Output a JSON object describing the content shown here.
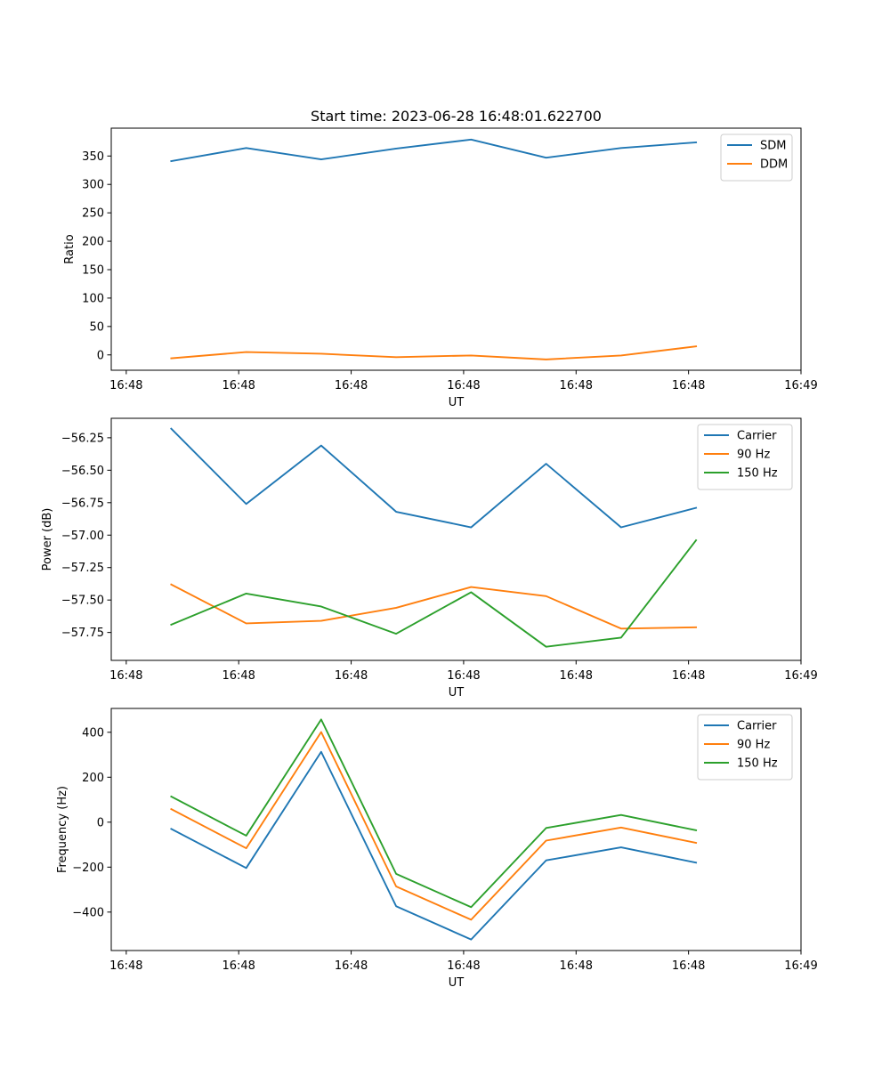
{
  "figure": {
    "title": "Start time: 2023-06-28 16:48:01.622700"
  },
  "chart_data": [
    {
      "type": "line",
      "title": "Start time: 2023-06-28 16:48:01.622700",
      "xlabel": "UT",
      "ylabel": "Ratio",
      "x": [
        1,
        2,
        3,
        4,
        5,
        6,
        7,
        8
      ],
      "xlim": [
        0.2,
        9.4
      ],
      "xtick_positions": [
        0.4,
        1.9,
        3.4,
        4.9,
        6.4,
        7.9,
        9.4
      ],
      "xtick_labels": [
        "16:48",
        "16:48",
        "16:48",
        "16:48",
        "16:48",
        "16:48",
        "16:49"
      ],
      "ylim": [
        -27,
        399
      ],
      "yticks": [
        0,
        50,
        100,
        150,
        200,
        250,
        300,
        350
      ],
      "grid": false,
      "legend_position": "top-right",
      "series": [
        {
          "name": "SDM",
          "color": "#1f77b4",
          "values": [
            341,
            364,
            344,
            363,
            379,
            347,
            364,
            374
          ]
        },
        {
          "name": "DDM",
          "color": "#ff7f0e",
          "values": [
            -6,
            5,
            2,
            -4,
            -1,
            -8,
            -1,
            15
          ]
        }
      ]
    },
    {
      "type": "line",
      "xlabel": "UT",
      "ylabel": "Power (dB)",
      "x": [
        1,
        2,
        3,
        4,
        5,
        6,
        7,
        8
      ],
      "xlim": [
        0.2,
        9.4
      ],
      "xtick_positions": [
        0.4,
        1.9,
        3.4,
        4.9,
        6.4,
        7.9,
        9.4
      ],
      "xtick_labels": [
        "16:48",
        "16:48",
        "16:48",
        "16:48",
        "16:48",
        "16:48",
        "16:49"
      ],
      "ylim": [
        -57.965,
        -56.1
      ],
      "yticks": [
        -57.75,
        -57.5,
        -57.25,
        -57.0,
        -56.75,
        -56.5,
        -56.25
      ],
      "ytick_labels": [
        "−57.75",
        "−57.50",
        "−57.25",
        "−57.00",
        "−56.75",
        "−56.50",
        "−56.25"
      ],
      "grid": false,
      "legend_position": "top-right",
      "series": [
        {
          "name": "Carrier",
          "color": "#1f77b4",
          "values": [
            -56.18,
            -56.76,
            -56.31,
            -56.82,
            -56.94,
            -56.45,
            -56.94,
            -56.79
          ]
        },
        {
          "name": "90 Hz",
          "color": "#ff7f0e",
          "values": [
            -57.38,
            -57.68,
            -57.66,
            -57.56,
            -57.4,
            -57.47,
            -57.72,
            -57.71
          ]
        },
        {
          "name": "150 Hz",
          "color": "#2ca02c",
          "values": [
            -57.69,
            -57.45,
            -57.55,
            -57.76,
            -57.44,
            -57.86,
            -57.79,
            -57.04
          ]
        }
      ]
    },
    {
      "type": "line",
      "xlabel": "UT",
      "ylabel": "Frequency (Hz)",
      "x": [
        1,
        2,
        3,
        4,
        5,
        6,
        7,
        8
      ],
      "xlim": [
        0.2,
        9.4
      ],
      "xtick_positions": [
        0.4,
        1.9,
        3.4,
        4.9,
        6.4,
        7.9,
        9.4
      ],
      "xtick_labels": [
        "16:48",
        "16:48",
        "16:48",
        "16:48",
        "16:48",
        "16:48",
        "16:49"
      ],
      "ylim": [
        -571,
        506
      ],
      "yticks": [
        -400,
        -200,
        0,
        200,
        400
      ],
      "ytick_labels": [
        "−400",
        "−200",
        "0",
        "200",
        "400"
      ],
      "grid": false,
      "legend_position": "top-right",
      "series": [
        {
          "name": "Carrier",
          "color": "#1f77b4",
          "values": [
            -30,
            -204,
            313,
            -374,
            -522,
            -170,
            -112,
            -180
          ]
        },
        {
          "name": "90 Hz",
          "color": "#ff7f0e",
          "values": [
            58,
            -116,
            401,
            -286,
            -434,
            -82,
            -24,
            -92
          ]
        },
        {
          "name": "150 Hz",
          "color": "#2ca02c",
          "values": [
            114,
            -60,
            457,
            -230,
            -378,
            -26,
            32,
            -36
          ]
        }
      ]
    }
  ]
}
